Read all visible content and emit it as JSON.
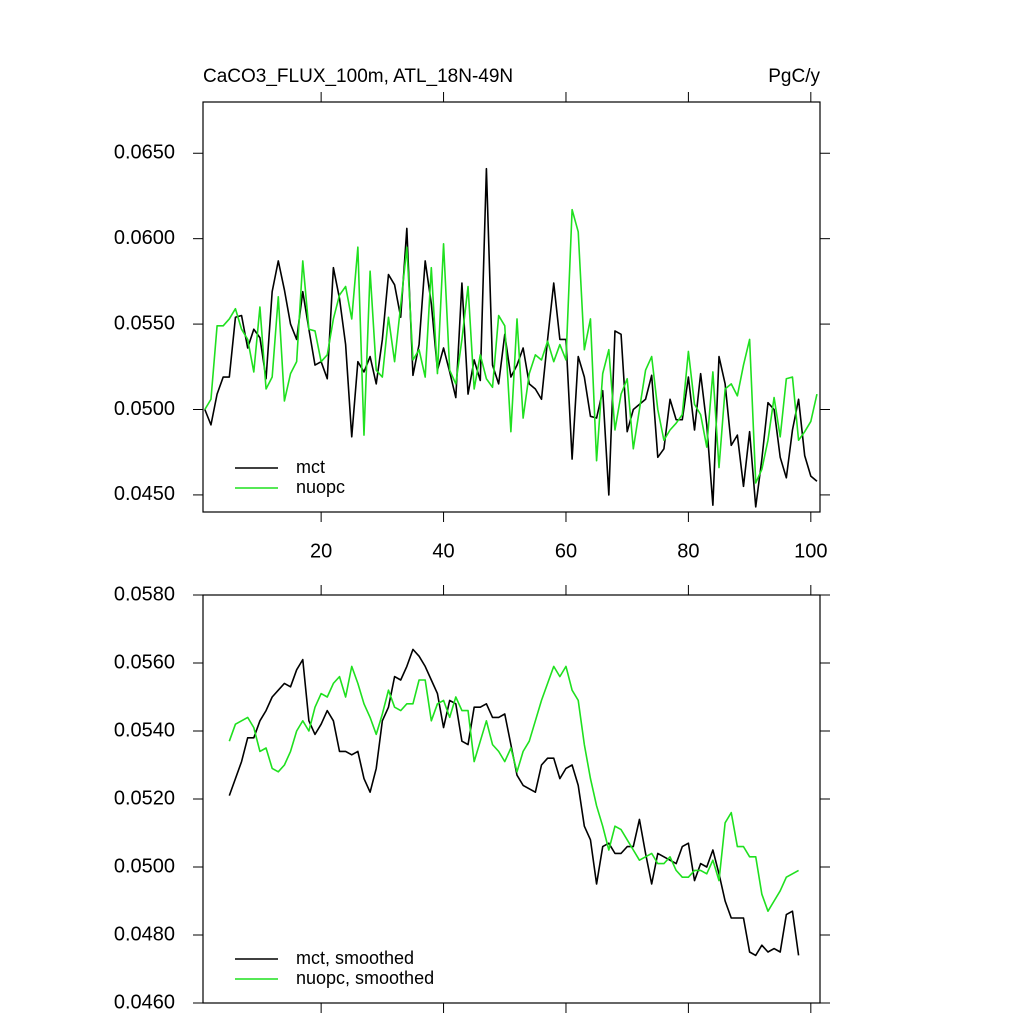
{
  "chart_data": [
    {
      "type": "line",
      "title": "CaCO3_FLUX_100m, ATL_18N-49N",
      "units": "PgC/y",
      "x": [
        1,
        2,
        3,
        4,
        5,
        6,
        7,
        8,
        9,
        10,
        11,
        12,
        13,
        14,
        15,
        16,
        17,
        18,
        19,
        20,
        21,
        22,
        23,
        24,
        25,
        26,
        27,
        28,
        29,
        30,
        31,
        32,
        33,
        34,
        35,
        36,
        37,
        38,
        39,
        40,
        41,
        42,
        43,
        44,
        45,
        46,
        47,
        48,
        49,
        50,
        51,
        52,
        53,
        54,
        55,
        56,
        57,
        58,
        59,
        60,
        61,
        62,
        63,
        64,
        65,
        66,
        67,
        68,
        69,
        70,
        71,
        72,
        73,
        74,
        75,
        76,
        77,
        78,
        79,
        80,
        81,
        82,
        83,
        84,
        85,
        86,
        87,
        88,
        89,
        90,
        91,
        92,
        93,
        94,
        95,
        96,
        97,
        98,
        99,
        100,
        101
      ],
      "series": [
        {
          "name": "mct",
          "color": "#000000",
          "values": [
            0.05,
            0.0491,
            0.0509,
            0.0519,
            0.0519,
            0.0554,
            0.0555,
            0.0536,
            0.0547,
            0.0542,
            0.0518,
            0.0569,
            0.0587,
            0.057,
            0.055,
            0.0541,
            0.0569,
            0.0547,
            0.0526,
            0.0528,
            0.0518,
            0.0583,
            0.0565,
            0.0538,
            0.0484,
            0.0528,
            0.0522,
            0.0531,
            0.0515,
            0.0541,
            0.0579,
            0.0573,
            0.0554,
            0.0606,
            0.052,
            0.0538,
            0.0587,
            0.0562,
            0.0523,
            0.0536,
            0.0522,
            0.0507,
            0.0574,
            0.0509,
            0.0529,
            0.0517,
            0.0641,
            0.0526,
            0.0515,
            0.0544,
            0.0519,
            0.0526,
            0.0536,
            0.0515,
            0.0512,
            0.0506,
            0.0541,
            0.0574,
            0.0541,
            0.0541,
            0.0471,
            0.0531,
            0.0519,
            0.0496,
            0.0495,
            0.0511,
            0.045,
            0.0546,
            0.0544,
            0.0487,
            0.05,
            0.0503,
            0.0506,
            0.052,
            0.0472,
            0.0477,
            0.0506,
            0.0494,
            0.0494,
            0.0519,
            0.0488,
            0.0521,
            0.0491,
            0.0444,
            0.0531,
            0.0515,
            0.0479,
            0.0485,
            0.0455,
            0.0487,
            0.0443,
            0.0471,
            0.0504,
            0.05,
            0.0472,
            0.046,
            0.0488,
            0.0506,
            0.0473,
            0.0461,
            0.0458
          ]
        },
        {
          "name": "nuopc",
          "color": "#1fe01f",
          "values": [
            0.05,
            0.0506,
            0.0549,
            0.0549,
            0.0553,
            0.0559,
            0.0547,
            0.0541,
            0.0522,
            0.056,
            0.0512,
            0.0519,
            0.0566,
            0.0505,
            0.0521,
            0.0528,
            0.0587,
            0.0547,
            0.0546,
            0.0528,
            0.0532,
            0.0553,
            0.0567,
            0.0572,
            0.0553,
            0.0595,
            0.0485,
            0.0581,
            0.0523,
            0.0519,
            0.0554,
            0.0528,
            0.0561,
            0.0595,
            0.0529,
            0.0535,
            0.0519,
            0.0583,
            0.0521,
            0.0597,
            0.0523,
            0.0515,
            0.0541,
            0.0572,
            0.0512,
            0.0532,
            0.0518,
            0.0513,
            0.0555,
            0.0549,
            0.0487,
            0.0553,
            0.0495,
            0.0521,
            0.0532,
            0.0529,
            0.054,
            0.0528,
            0.0538,
            0.0529,
            0.0617,
            0.0604,
            0.0535,
            0.0553,
            0.047,
            0.0521,
            0.0535,
            0.0488,
            0.0509,
            0.0518,
            0.0477,
            0.05,
            0.0523,
            0.0531,
            0.05,
            0.0482,
            0.0488,
            0.0492,
            0.0497,
            0.0534,
            0.0503,
            0.0497,
            0.0478,
            0.0522,
            0.0466,
            0.0512,
            0.0515,
            0.0508,
            0.0526,
            0.0541,
            0.0457,
            0.0465,
            0.0482,
            0.0507,
            0.0484,
            0.0518,
            0.0519,
            0.0482,
            0.0487,
            0.0493,
            0.0509
          ]
        }
      ],
      "xlim": [
        0.7,
        101.5
      ],
      "xticks": [
        20,
        40,
        60,
        80,
        100
      ],
      "ylim": [
        0.044,
        0.068
      ],
      "yticks": [
        {
          "value": 0.045,
          "label": "0.0450"
        },
        {
          "value": 0.05,
          "label": "0.0500"
        },
        {
          "value": 0.055,
          "label": "0.0550"
        },
        {
          "value": 0.06,
          "label": "0.0600"
        },
        {
          "value": 0.065,
          "label": "0.0650"
        }
      ],
      "legend": "lower left"
    },
    {
      "type": "line",
      "x": [
        5,
        6,
        7,
        8,
        9,
        10,
        11,
        12,
        13,
        14,
        15,
        16,
        17,
        18,
        19,
        20,
        21,
        22,
        23,
        24,
        25,
        26,
        27,
        28,
        29,
        30,
        31,
        32,
        33,
        34,
        35,
        36,
        37,
        38,
        39,
        40,
        41,
        42,
        43,
        44,
        45,
        46,
        47,
        48,
        49,
        50,
        51,
        52,
        53,
        54,
        55,
        56,
        57,
        58,
        59,
        60,
        61,
        62,
        63,
        64,
        65,
        66,
        67,
        68,
        69,
        70,
        71,
        72,
        73,
        74,
        75,
        76,
        77,
        78,
        79,
        80,
        81,
        82,
        83,
        84,
        85,
        86,
        87,
        88,
        89,
        90,
        91,
        92,
        93,
        94,
        95,
        96,
        97,
        98
      ],
      "series": [
        {
          "name": "mct, smoothed",
          "color": "#000000",
          "values": [
            0.0521,
            0.0526,
            0.0531,
            0.0538,
            0.0538,
            0.0543,
            0.0546,
            0.055,
            0.0552,
            0.0554,
            0.0553,
            0.0558,
            0.0561,
            0.0543,
            0.0539,
            0.0542,
            0.0546,
            0.0543,
            0.0534,
            0.0534,
            0.0533,
            0.0534,
            0.0526,
            0.0522,
            0.0529,
            0.0543,
            0.0547,
            0.0556,
            0.0555,
            0.0559,
            0.0564,
            0.0562,
            0.0559,
            0.0555,
            0.0551,
            0.0541,
            0.0549,
            0.0548,
            0.0537,
            0.0536,
            0.0547,
            0.0547,
            0.0548,
            0.0544,
            0.0544,
            0.0545,
            0.0536,
            0.0527,
            0.0524,
            0.0523,
            0.0522,
            0.053,
            0.0532,
            0.0532,
            0.0526,
            0.0529,
            0.053,
            0.0524,
            0.0512,
            0.0508,
            0.0495,
            0.0506,
            0.0507,
            0.0504,
            0.0504,
            0.0506,
            0.0506,
            0.0514,
            0.0504,
            0.0495,
            0.0504,
            0.0503,
            0.0502,
            0.0501,
            0.0506,
            0.0507,
            0.0496,
            0.0501,
            0.05,
            0.0505,
            0.0498,
            0.049,
            0.0485,
            0.0485,
            0.0485,
            0.0475,
            0.0474,
            0.0477,
            0.0475,
            0.0476,
            0.0475,
            0.0486,
            0.0487,
            0.0474
          ]
        },
        {
          "name": "nuopc, smoothed",
          "color": "#1fe01f",
          "values": [
            0.0537,
            0.0542,
            0.0543,
            0.0544,
            0.0541,
            0.0534,
            0.0535,
            0.0529,
            0.0528,
            0.053,
            0.0534,
            0.054,
            0.0543,
            0.054,
            0.0547,
            0.0551,
            0.055,
            0.0554,
            0.0556,
            0.055,
            0.0559,
            0.0554,
            0.0548,
            0.0544,
            0.0539,
            0.0545,
            0.0552,
            0.0547,
            0.0546,
            0.0548,
            0.0548,
            0.0555,
            0.0555,
            0.0543,
            0.0548,
            0.0549,
            0.0544,
            0.055,
            0.0546,
            0.0546,
            0.0531,
            0.0537,
            0.0543,
            0.0536,
            0.0534,
            0.0531,
            0.0535,
            0.0528,
            0.0534,
            0.0537,
            0.0543,
            0.0549,
            0.0554,
            0.0559,
            0.0556,
            0.0559,
            0.0552,
            0.0549,
            0.0536,
            0.0526,
            0.0518,
            0.0512,
            0.0505,
            0.0512,
            0.0511,
            0.0508,
            0.0505,
            0.0502,
            0.0503,
            0.0504,
            0.0501,
            0.0501,
            0.0503,
            0.0499,
            0.0497,
            0.0497,
            0.0499,
            0.0499,
            0.0498,
            0.0502,
            0.0496,
            0.0513,
            0.0516,
            0.0506,
            0.0506,
            0.0503,
            0.0503,
            0.0492,
            0.0487,
            0.049,
            0.0493,
            0.0497,
            0.0498,
            0.0499
          ]
        }
      ],
      "xlim": [
        0.7,
        101.5
      ],
      "xticks": [
        20,
        40,
        60,
        80,
        100
      ],
      "ylim": [
        0.046,
        0.058
      ],
      "yticks": [
        {
          "value": 0.046,
          "label": "0.0460"
        },
        {
          "value": 0.048,
          "label": "0.0480"
        },
        {
          "value": 0.05,
          "label": "0.0500"
        },
        {
          "value": 0.052,
          "label": "0.0520"
        },
        {
          "value": 0.054,
          "label": "0.0540"
        },
        {
          "value": 0.056,
          "label": "0.0560"
        },
        {
          "value": 0.058,
          "label": "0.0580"
        }
      ],
      "legend": "lower left"
    }
  ]
}
